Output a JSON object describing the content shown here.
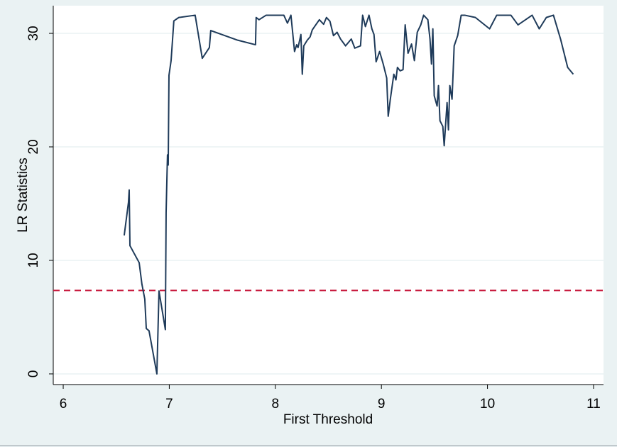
{
  "chart_data": {
    "type": "line",
    "x_label": "First Threshold",
    "y_label": "LR Statistics",
    "xlim": [
      5.906,
      11.094
    ],
    "ylim": [
      -0.94,
      32.44
    ],
    "xticks": [
      6,
      7,
      8,
      9,
      10,
      11
    ],
    "yticks": [
      0,
      10,
      20,
      30
    ],
    "grid": true,
    "hline": {
      "value": 7.35,
      "color": "#c8193c",
      "dashed": true
    },
    "series": [
      {
        "color": "#1f3b5a",
        "x": [
          6.575,
          6.615,
          6.622,
          6.629,
          6.716,
          6.742,
          6.769,
          6.783,
          6.809,
          6.883,
          6.903,
          6.963,
          6.97,
          6.983,
          6.99,
          6.997,
          7.017,
          7.043,
          7.09,
          7.244,
          7.311,
          7.378,
          7.391,
          7.645,
          7.813,
          7.819,
          7.846,
          7.913,
          8.08,
          8.114,
          8.147,
          8.181,
          8.201,
          8.214,
          8.241,
          8.254,
          8.268,
          8.301,
          8.328,
          8.348,
          8.381,
          8.415,
          8.455,
          8.482,
          8.515,
          8.548,
          8.582,
          8.615,
          8.662,
          8.716,
          8.749,
          8.803,
          8.823,
          8.849,
          8.883,
          8.91,
          8.93,
          8.95,
          8.983,
          9.017,
          9.05,
          9.064,
          9.084,
          9.117,
          9.137,
          9.151,
          9.177,
          9.204,
          9.224,
          9.251,
          9.284,
          9.311,
          9.338,
          9.371,
          9.398,
          9.438,
          9.458,
          9.472,
          9.485,
          9.498,
          9.525,
          9.538,
          9.552,
          9.579,
          9.592,
          9.619,
          9.632,
          9.645,
          9.666,
          9.686,
          9.719,
          9.752,
          9.786,
          9.886,
          10.02,
          10.087,
          10.221,
          10.288,
          10.421,
          10.488,
          10.555,
          10.622,
          10.689,
          10.756,
          10.809
        ],
        "values": [
          12.2,
          15.1,
          16.2,
          11.3,
          9.8,
          7.9,
          6.6,
          4.0,
          3.8,
          0.0,
          7.3,
          3.9,
          14.2,
          19.3,
          18.4,
          26.3,
          27.6,
          31.1,
          31.4,
          31.6,
          27.8,
          28.75,
          30.25,
          29.4,
          29.0,
          31.4,
          31.2,
          31.6,
          31.6,
          30.9,
          31.6,
          28.4,
          29.0,
          28.75,
          29.9,
          26.4,
          28.9,
          29.4,
          29.7,
          30.3,
          30.75,
          31.2,
          30.8,
          31.4,
          31.06,
          29.8,
          30.1,
          29.5,
          28.9,
          29.5,
          28.7,
          28.9,
          31.6,
          30.6,
          31.6,
          30.4,
          29.9,
          27.5,
          28.4,
          27.3,
          26.06,
          22.7,
          24.2,
          26.4,
          25.9,
          27.0,
          26.7,
          26.8,
          30.75,
          28.25,
          29.06,
          27.6,
          30.1,
          30.75,
          31.6,
          31.2,
          29.5,
          27.3,
          30.4,
          24.5,
          23.6,
          25.4,
          22.3,
          21.8,
          20.1,
          23.9,
          21.5,
          25.4,
          24.2,
          28.9,
          29.8,
          31.6,
          31.6,
          31.4,
          30.4,
          31.6,
          31.6,
          30.75,
          31.6,
          30.4,
          31.4,
          31.6,
          29.5,
          27.0,
          26.4
        ]
      }
    ]
  }
}
